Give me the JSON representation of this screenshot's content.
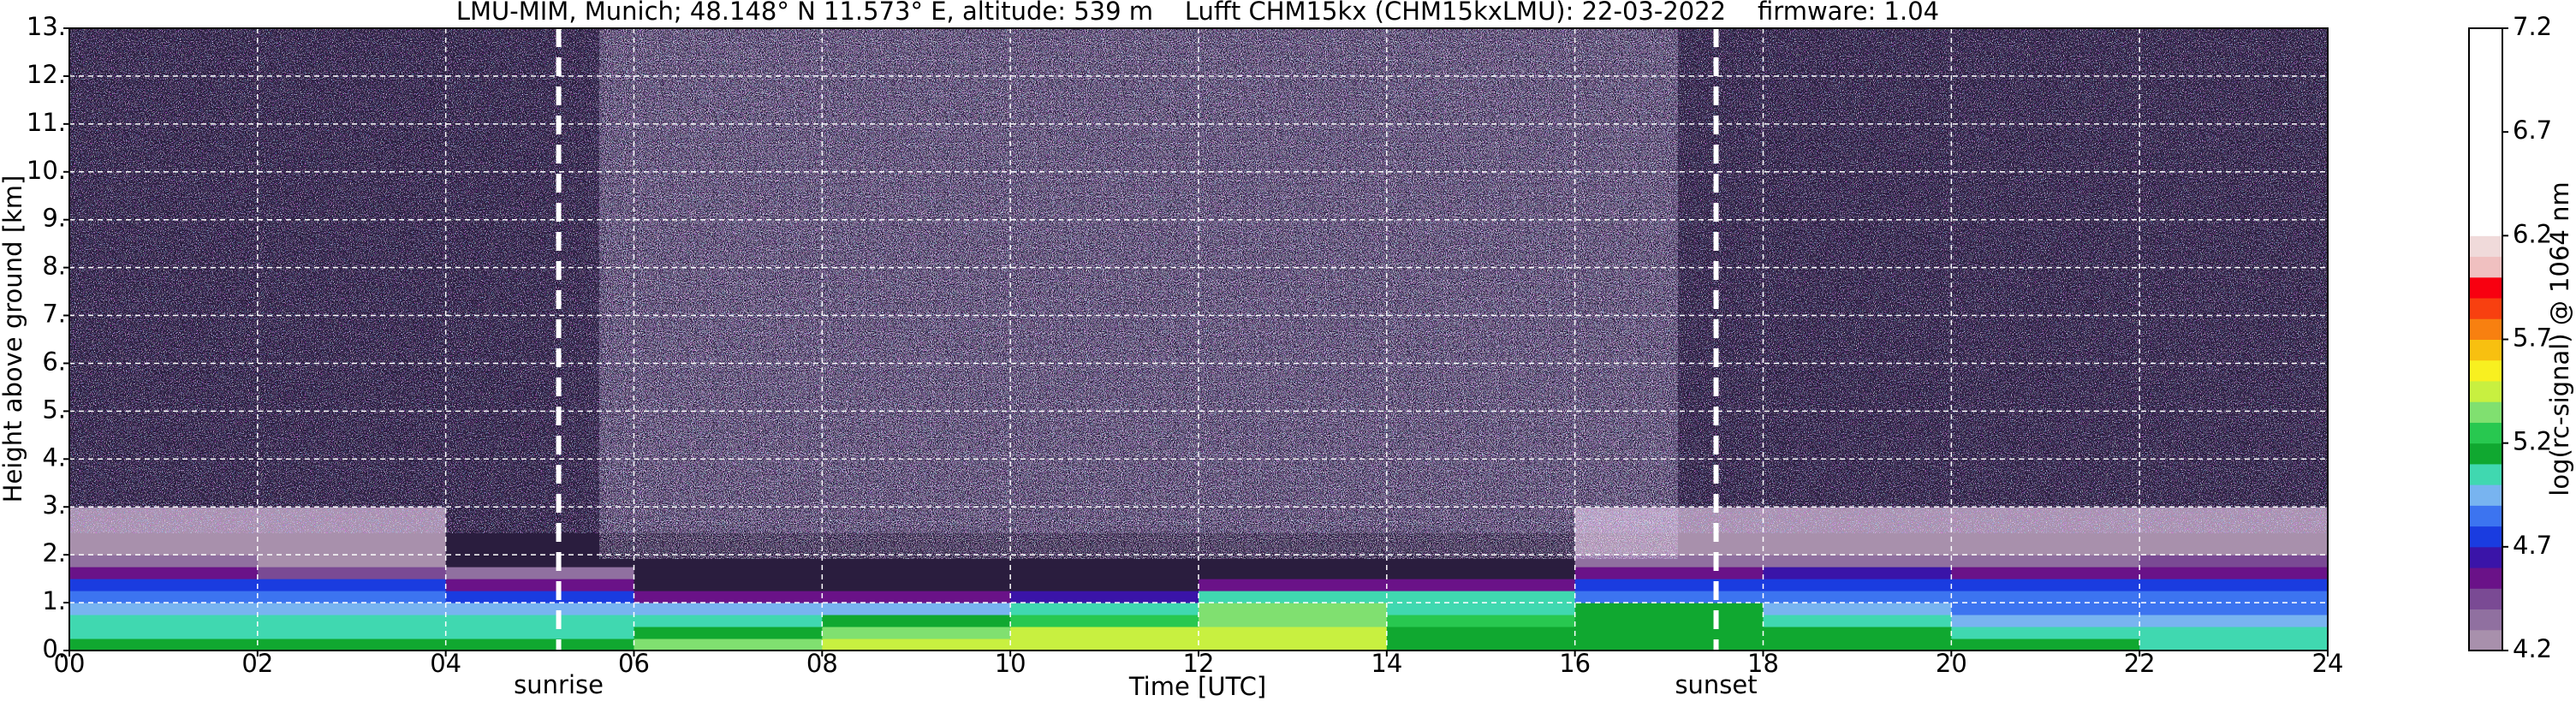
{
  "chart_data": {
    "type": "heatmap",
    "title": "LMU-MIM, Munich; 48.148° N 11.573° E, altitude: 539 m    Lufft CHM15kx (CHM15kxLMU): 22-03-2022    firmware: 1.04",
    "xlabel": "Time [UTC]",
    "ylabel": "Height above ground [km]",
    "colorbar_label": "log(rc-signal) @ 1064 nm",
    "xlim": [
      0,
      24
    ],
    "ylim": [
      0,
      13
    ],
    "xticks": [
      {
        "value": 0,
        "label": "00"
      },
      {
        "value": 2,
        "label": "02"
      },
      {
        "value": 4,
        "label": "04"
      },
      {
        "value": 6,
        "label": "06"
      },
      {
        "value": 8,
        "label": "08"
      },
      {
        "value": 10,
        "label": "10"
      },
      {
        "value": 12,
        "label": "12"
      },
      {
        "value": 14,
        "label": "14"
      },
      {
        "value": 16,
        "label": "16"
      },
      {
        "value": 18,
        "label": "18"
      },
      {
        "value": 20,
        "label": "20"
      },
      {
        "value": 22,
        "label": "22"
      },
      {
        "value": 24,
        "label": "24"
      }
    ],
    "yticks": [
      {
        "value": 0,
        "label": "0."
      },
      {
        "value": 1,
        "label": "1."
      },
      {
        "value": 2,
        "label": "2."
      },
      {
        "value": 3,
        "label": "3."
      },
      {
        "value": 4,
        "label": "4."
      },
      {
        "value": 5,
        "label": "5."
      },
      {
        "value": 6,
        "label": "6."
      },
      {
        "value": 7,
        "label": "7."
      },
      {
        "value": 8,
        "label": "8."
      },
      {
        "value": 9,
        "label": "9."
      },
      {
        "value": 10,
        "label": "10."
      },
      {
        "value": 11,
        "label": "11."
      },
      {
        "value": 12,
        "label": "12."
      },
      {
        "value": 13,
        "label": "13."
      }
    ],
    "grid": true,
    "x_bins": [
      0,
      2,
      4,
      6,
      8,
      10,
      12,
      14,
      16,
      18,
      20,
      22,
      24
    ],
    "y_bins": [
      0,
      0.25,
      0.5,
      0.75,
      1.0,
      1.25,
      1.5,
      1.75,
      2.0,
      3.0,
      4.0,
      13
    ],
    "z": [
      [
        5.1,
        5.1,
        5.1,
        5.3,
        5.45,
        5.45,
        5.4,
        5.1,
        5.1,
        5.1,
        5.1,
        5.0
      ],
      [
        5.0,
        5.0,
        5.0,
        5.1,
        5.3,
        5.4,
        5.4,
        5.1,
        5.1,
        5.1,
        5.0,
        5.0
      ],
      [
        5.0,
        5.0,
        5.0,
        5.0,
        5.1,
        5.2,
        5.35,
        5.2,
        5.1,
        5.0,
        4.9,
        4.9
      ],
      [
        4.9,
        4.9,
        4.9,
        4.9,
        4.9,
        5.0,
        5.3,
        5.0,
        5.1,
        4.9,
        4.85,
        4.85
      ],
      [
        4.85,
        4.8,
        4.7,
        4.5,
        4.5,
        4.6,
        5.0,
        5.0,
        4.8,
        4.8,
        4.8,
        4.8
      ],
      [
        4.7,
        4.7,
        4.5,
        4.0,
        4.0,
        4.0,
        4.5,
        4.5,
        4.7,
        4.7,
        4.7,
        4.7
      ],
      [
        4.5,
        4.4,
        4.3,
        4.0,
        4.0,
        4.0,
        4.0,
        4.0,
        4.5,
        4.6,
        4.5,
        4.5
      ],
      [
        4.3,
        4.2,
        4.1,
        4.0,
        4.0,
        4.0,
        4.0,
        4.0,
        4.3,
        4.3,
        4.3,
        4.4
      ],
      [
        4.2,
        4.2,
        4.1,
        4.0,
        4.0,
        4.0,
        4.0,
        4.0,
        4.2,
        4.2,
        4.2,
        4.2
      ],
      [
        4.1,
        4.1,
        4.0,
        4.0,
        4.0,
        4.0,
        4.0,
        4.0,
        4.1,
        4.1,
        4.1,
        4.1
      ],
      [
        4.0,
        4.0,
        4.0,
        4.0,
        4.0,
        4.0,
        4.0,
        4.0,
        4.0,
        4.0,
        4.0,
        4.0
      ]
    ],
    "clim": [
      4.2,
      7.2
    ],
    "colorbar_ticks": [
      4.2,
      4.7,
      5.2,
      5.7,
      6.2,
      6.7,
      7.2
    ],
    "under_color": "#2a1d3e",
    "colormap": [
      "#a890ac",
      "#9070a0",
      "#7a4a94",
      "#6a1288",
      "#3a14a8",
      "#1a3ce0",
      "#3c74f0",
      "#78b4f0",
      "#40d8b0",
      "#10a830",
      "#28c850",
      "#80e070",
      "#c8f040",
      "#f8f020",
      "#f8c010",
      "#f88010",
      "#f84010",
      "#f80010",
      "#f0c0c0",
      "#f0dada",
      "#ffffff",
      "#ffffff",
      "#ffffff",
      "#ffffff",
      "#ffffff",
      "#ffffff",
      "#ffffff",
      "#ffffff",
      "#ffffff",
      "#ffffff"
    ],
    "annotations": [
      {
        "text": "sunrise",
        "x": 5.2
      },
      {
        "text": "sunset",
        "x": 17.5
      }
    ]
  }
}
